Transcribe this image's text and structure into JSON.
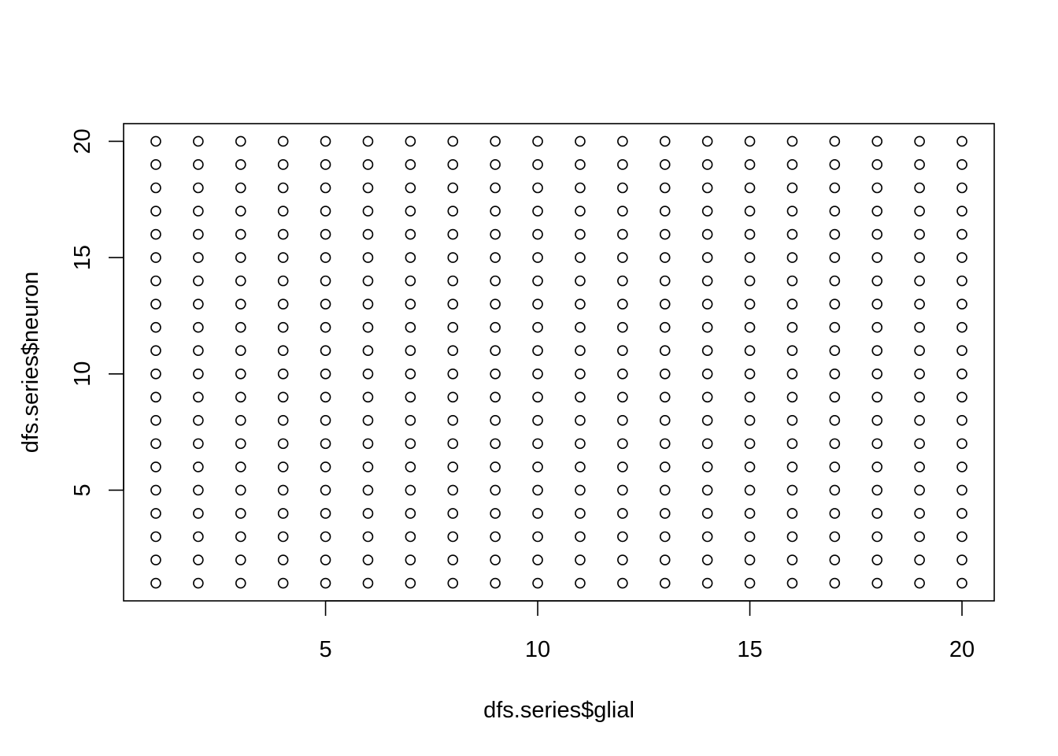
{
  "chart_data": {
    "type": "scatter",
    "title": "",
    "xlabel": "dfs.series$glial",
    "ylabel": "dfs.series$neuron",
    "xlim": [
      0.24,
      20.76
    ],
    "ylim": [
      0.24,
      20.76
    ],
    "x_ticks": [
      5,
      10,
      15,
      20
    ],
    "y_ticks": [
      5,
      10,
      15,
      20
    ],
    "x_tick_labels": [
      "5",
      "10",
      "15",
      "20"
    ],
    "y_tick_labels": [
      "5",
      "10",
      "15",
      "20"
    ],
    "grid": false,
    "legend": "none",
    "marker": "open-circle",
    "marker_color": "#000000",
    "x_values": [
      1,
      2,
      3,
      4,
      5,
      6,
      7,
      8,
      9,
      10,
      11,
      12,
      13,
      14,
      15,
      16,
      17,
      18,
      19,
      20
    ],
    "y_values": [
      1,
      2,
      3,
      4,
      5,
      6,
      7,
      8,
      9,
      10,
      11,
      12,
      13,
      14,
      15,
      16,
      17,
      18,
      19,
      20
    ],
    "points": "every combination of x_values and y_values (20 x 20 grid, 400 points)"
  }
}
